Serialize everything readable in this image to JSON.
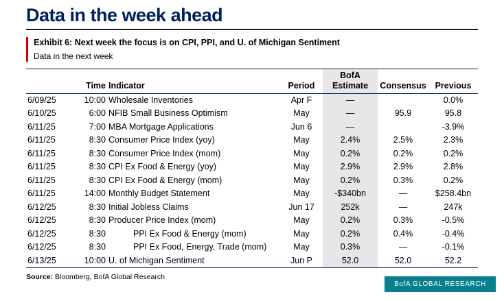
{
  "page": {
    "title": "Data in the week ahead"
  },
  "exhibit": {
    "label": "Exhibit 6: Next week the focus is on CPI, PPI, and U. of Michigan Sentiment",
    "subtitle": "Data in the next week"
  },
  "table": {
    "headers": {
      "date": "",
      "time": "Time",
      "indicator": "Indicator",
      "period": "Period",
      "estimate_line1": "BofA",
      "estimate_line2": "Estimate",
      "consensus": "Consensus",
      "previous": "Previous"
    },
    "rows": [
      {
        "date": "6/09/25",
        "time": "10:00",
        "indicator": "Wholesale Inventories",
        "period": "Apr F",
        "estimate": "—",
        "consensus": "",
        "previous": "0.0%",
        "indent": false
      },
      {
        "date": "6/10/25",
        "time": "6:00",
        "indicator": "NFIB Small Business Optimism",
        "period": "May",
        "estimate": "—",
        "consensus": "95.9",
        "previous": "95.8",
        "indent": false
      },
      {
        "date": "6/11/25",
        "time": "7:00",
        "indicator": "MBA Mortgage Applications",
        "period": "Jun 6",
        "estimate": "—",
        "consensus": "",
        "previous": "-3.9%",
        "indent": false
      },
      {
        "date": "6/11/25",
        "time": "8:30",
        "indicator": "Consumer Price Index (yoy)",
        "period": "May",
        "estimate": "2.4%",
        "consensus": "2.5%",
        "previous": "2.3%",
        "indent": false
      },
      {
        "date": "6/11/25",
        "time": "8:30",
        "indicator": "Consumer Price Index (mom)",
        "period": "May",
        "estimate": "0.2%",
        "consensus": "0.2%",
        "previous": "0.2%",
        "indent": false
      },
      {
        "date": "6/11/25",
        "time": "8:30",
        "indicator": "CPI Ex Food & Energy (yoy)",
        "period": "May",
        "estimate": "2.9%",
        "consensus": "2.9%",
        "previous": "2.8%",
        "indent": false
      },
      {
        "date": "6/11/25",
        "time": "8:30",
        "indicator": "CPI Ex Food & Energy (mom)",
        "period": "May",
        "estimate": "0.2%",
        "consensus": "0.3%",
        "previous": "0.2%",
        "indent": false
      },
      {
        "date": "6/11/25",
        "time": "14:00",
        "indicator": "Monthly Budget Statement",
        "period": "May",
        "estimate": "-$340bn",
        "consensus": "—",
        "previous": "$258.4bn",
        "indent": false
      },
      {
        "date": "6/12/25",
        "time": "8:30",
        "indicator": "Initial Jobless Claims",
        "period": "Jun 17",
        "estimate": "252k",
        "consensus": "—",
        "previous": "247k",
        "indent": false
      },
      {
        "date": "6/12/25",
        "time": "8:30",
        "indicator": "Producer Price Index (mom)",
        "period": "May",
        "estimate": "0.2%",
        "consensus": "0.3%",
        "previous": "-0.5%",
        "indent": false
      },
      {
        "date": "6/12/25",
        "time": "8:30",
        "indicator": "PPI Ex Food & Energy (mom)",
        "period": "May",
        "estimate": "0.2%",
        "consensus": "0.4%",
        "previous": "-0.4%",
        "indent": true
      },
      {
        "date": "6/12/25",
        "time": "8:30",
        "indicator": "PPI Ex Food, Energy, Trade (mom)",
        "period": "May",
        "estimate": "0.3%",
        "consensus": "—",
        "previous": "-0.1%",
        "indent": true
      },
      {
        "date": "6/13/25",
        "time": "10:00",
        "indicator": "U. of Michigan Sentiment",
        "period": "Jun P",
        "estimate": "52.0",
        "consensus": "52.0",
        "previous": "52.2",
        "indent": false
      }
    ]
  },
  "source": {
    "label": "Source:",
    "text": "Bloomberg, BofA Global Research"
  },
  "brand": {
    "label": "BofA GLOBAL RESEARCH"
  },
  "colors": {
    "navy": "#00205b",
    "red": "#cc0000",
    "teal": "#087f8c",
    "column_shade": "#e7e7e7"
  }
}
